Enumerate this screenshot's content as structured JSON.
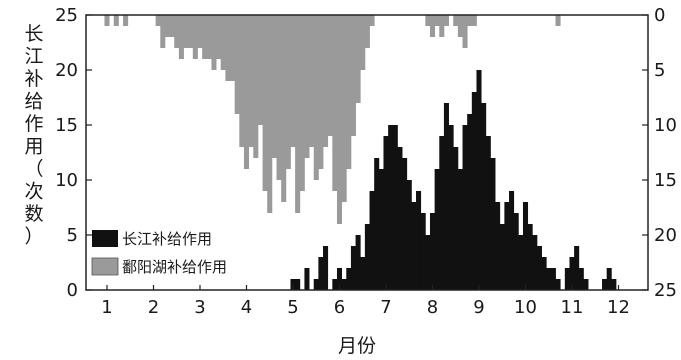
{
  "chart_data": {
    "type": "bar",
    "xlabel": "月份",
    "ylabel": "长江补给作用（次数）",
    "x_ticks": [
      "1",
      "2",
      "3",
      "4",
      "5",
      "6",
      "7",
      "8",
      "9",
      "10",
      "11",
      "12"
    ],
    "y_left_ticks": [
      "0",
      "5",
      "10",
      "15",
      "20",
      "25"
    ],
    "y_right_ticks": [
      "0",
      "5",
      "10",
      "15",
      "20",
      "25"
    ],
    "ylim_left": [
      0,
      25
    ],
    "ylim_right_inverted": [
      0,
      25
    ],
    "grid": false,
    "legend_position": "bottom-left",
    "series": [
      {
        "name": "长江补给作用",
        "color": "#111111",
        "axis": "left",
        "points": [
          [
            5.0,
            1
          ],
          [
            5.1,
            1
          ],
          [
            5.2,
            0
          ],
          [
            5.3,
            2
          ],
          [
            5.4,
            0
          ],
          [
            5.5,
            1
          ],
          [
            5.6,
            3
          ],
          [
            5.7,
            4
          ],
          [
            5.8,
            0
          ],
          [
            5.9,
            1
          ],
          [
            6.0,
            2
          ],
          [
            6.1,
            1
          ],
          [
            6.2,
            2
          ],
          [
            6.3,
            4
          ],
          [
            6.4,
            5
          ],
          [
            6.5,
            3
          ],
          [
            6.6,
            6
          ],
          [
            6.7,
            9
          ],
          [
            6.8,
            12
          ],
          [
            6.9,
            11
          ],
          [
            7.0,
            14
          ],
          [
            7.1,
            15
          ],
          [
            7.2,
            15
          ],
          [
            7.3,
            13
          ],
          [
            7.4,
            12
          ],
          [
            7.5,
            10
          ],
          [
            7.6,
            8
          ],
          [
            7.7,
            9
          ],
          [
            7.8,
            7
          ],
          [
            7.9,
            5
          ],
          [
            8.0,
            7
          ],
          [
            8.1,
            11
          ],
          [
            8.2,
            14
          ],
          [
            8.3,
            17
          ],
          [
            8.4,
            15
          ],
          [
            8.5,
            13
          ],
          [
            8.6,
            11
          ],
          [
            8.7,
            15
          ],
          [
            8.8,
            16
          ],
          [
            8.9,
            18
          ],
          [
            9.0,
            20
          ],
          [
            9.1,
            17
          ],
          [
            9.2,
            14
          ],
          [
            9.3,
            12
          ],
          [
            9.4,
            8
          ],
          [
            9.5,
            6
          ],
          [
            9.6,
            8
          ],
          [
            9.7,
            9
          ],
          [
            9.8,
            7
          ],
          [
            9.9,
            5
          ],
          [
            10.0,
            8
          ],
          [
            10.1,
            6
          ],
          [
            10.2,
            5
          ],
          [
            10.3,
            4
          ],
          [
            10.4,
            3
          ],
          [
            10.5,
            2
          ],
          [
            10.6,
            2
          ],
          [
            10.7,
            1
          ],
          [
            10.8,
            0
          ],
          [
            10.9,
            2
          ],
          [
            11.0,
            3
          ],
          [
            11.1,
            4
          ],
          [
            11.2,
            2
          ],
          [
            11.3,
            1
          ],
          [
            11.4,
            0
          ],
          [
            11.5,
            0
          ],
          [
            11.6,
            0
          ],
          [
            11.7,
            1
          ],
          [
            11.8,
            2
          ],
          [
            11.9,
            1
          ]
        ]
      },
      {
        "name": "鄱阳湖补给作用",
        "color": "#9a9a9a",
        "axis": "right_inverted",
        "points": [
          [
            1.0,
            1
          ],
          [
            1.1,
            0
          ],
          [
            1.2,
            1
          ],
          [
            1.3,
            0
          ],
          [
            1.4,
            1
          ],
          [
            1.5,
            0
          ],
          [
            1.6,
            0
          ],
          [
            1.7,
            0
          ],
          [
            1.8,
            0
          ],
          [
            1.9,
            0
          ],
          [
            2.0,
            0
          ],
          [
            2.1,
            1
          ],
          [
            2.2,
            3
          ],
          [
            2.3,
            2
          ],
          [
            2.4,
            2
          ],
          [
            2.5,
            3
          ],
          [
            2.6,
            4
          ],
          [
            2.7,
            3
          ],
          [
            2.8,
            3
          ],
          [
            2.9,
            4
          ],
          [
            3.0,
            3
          ],
          [
            3.1,
            4
          ],
          [
            3.2,
            4
          ],
          [
            3.3,
            5
          ],
          [
            3.4,
            4
          ],
          [
            3.5,
            5
          ],
          [
            3.6,
            6
          ],
          [
            3.7,
            6
          ],
          [
            3.8,
            9
          ],
          [
            3.9,
            12
          ],
          [
            4.0,
            14
          ],
          [
            4.1,
            12
          ],
          [
            4.2,
            13
          ],
          [
            4.3,
            10
          ],
          [
            4.4,
            16
          ],
          [
            4.5,
            18
          ],
          [
            4.6,
            13
          ],
          [
            4.7,
            15
          ],
          [
            4.8,
            17
          ],
          [
            4.9,
            14
          ],
          [
            5.0,
            12
          ],
          [
            5.1,
            18
          ],
          [
            5.2,
            16
          ],
          [
            5.3,
            13
          ],
          [
            5.4,
            12
          ],
          [
            5.5,
            15
          ],
          [
            5.6,
            14
          ],
          [
            5.7,
            12
          ],
          [
            5.8,
            11
          ],
          [
            5.9,
            16
          ],
          [
            6.0,
            19
          ],
          [
            6.1,
            17
          ],
          [
            6.2,
            14
          ],
          [
            6.3,
            11
          ],
          [
            6.4,
            8
          ],
          [
            6.5,
            5
          ],
          [
            6.6,
            3
          ],
          [
            6.7,
            1
          ],
          [
            6.8,
            0
          ],
          [
            6.9,
            0
          ],
          [
            7.0,
            0
          ],
          [
            7.1,
            0
          ],
          [
            7.2,
            0
          ],
          [
            7.3,
            0
          ],
          [
            7.4,
            0
          ],
          [
            7.5,
            0
          ],
          [
            7.6,
            0
          ],
          [
            7.7,
            0
          ],
          [
            7.8,
            0
          ],
          [
            7.9,
            1
          ],
          [
            8.0,
            2
          ],
          [
            8.1,
            1
          ],
          [
            8.2,
            2
          ],
          [
            8.3,
            1
          ],
          [
            8.4,
            0
          ],
          [
            8.5,
            1
          ],
          [
            8.6,
            2
          ],
          [
            8.7,
            3
          ],
          [
            8.8,
            1
          ],
          [
            8.9,
            1
          ],
          [
            9.0,
            0
          ],
          [
            9.1,
            0
          ],
          [
            9.2,
            0
          ],
          [
            9.3,
            0
          ],
          [
            9.4,
            0
          ],
          [
            9.5,
            0
          ],
          [
            9.6,
            0
          ],
          [
            9.7,
            0
          ],
          [
            9.8,
            0
          ],
          [
            9.9,
            0
          ],
          [
            10.0,
            0
          ],
          [
            10.1,
            0
          ],
          [
            10.2,
            0
          ],
          [
            10.3,
            0
          ],
          [
            10.4,
            0
          ],
          [
            10.5,
            0
          ],
          [
            10.6,
            0
          ],
          [
            10.7,
            1
          ],
          [
            10.8,
            0
          ],
          [
            10.9,
            0
          ],
          [
            11.0,
            0
          ],
          [
            11.1,
            0
          ],
          [
            11.2,
            0
          ],
          [
            11.3,
            0
          ],
          [
            11.4,
            0
          ],
          [
            11.5,
            0
          ],
          [
            11.6,
            0
          ],
          [
            11.7,
            0
          ],
          [
            11.8,
            0
          ],
          [
            11.9,
            0
          ]
        ]
      }
    ]
  }
}
